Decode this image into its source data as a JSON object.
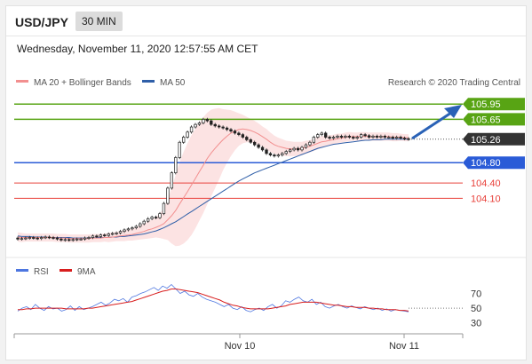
{
  "header": {
    "pair": "USD/JPY",
    "timeframe": "30 MIN"
  },
  "timestamp": "Wednesday, November 11, 2020 12:57:55 AM CET",
  "colors": {
    "support": "#2a5bd7",
    "resistance": "#58a414",
    "pivot": "#e8403a",
    "price_tag": "#333333",
    "ma20": "#f28f8f",
    "ma50": "#2f5fa8",
    "bollinger": "#fbdada",
    "rsi": "#4d76e0",
    "rsi_ma": "#d81e1e",
    "arrow": "#2a62b6"
  },
  "chart_data": [
    {
      "type": "candlestick",
      "title": "USD/JPY 30 MIN",
      "legend": [
        {
          "name": "MA 20 + Bollinger Bands",
          "color": "#f28f8f"
        },
        {
          "name": "MA 50",
          "color": "#2f5fa8"
        }
      ],
      "credit": "Research © 2020 Trading Central",
      "x_ticks": [
        "Nov 10",
        "Nov 11"
      ],
      "ylim": [
        103.2,
        106.25
      ],
      "y_scale": "linear",
      "grid": false,
      "current_price": "105.26",
      "levels": [
        {
          "label": "105.95",
          "value": 105.95,
          "kind": "resistance"
        },
        {
          "label": "105.65",
          "value": 105.65,
          "kind": "resistance"
        },
        {
          "label": "104.80",
          "value": 104.8,
          "kind": "support"
        },
        {
          "label": "104.40",
          "value": 104.4,
          "kind": "pivot"
        },
        {
          "label": "104.10",
          "value": 104.1,
          "kind": "pivot"
        }
      ],
      "close": [
        103.3,
        103.31,
        103.32,
        103.33,
        103.32,
        103.31,
        103.33,
        103.34,
        103.33,
        103.32,
        103.3,
        103.28,
        103.29,
        103.28,
        103.29,
        103.3,
        103.3,
        103.32,
        103.33,
        103.36,
        103.35,
        103.38,
        103.37,
        103.4,
        103.41,
        103.42,
        103.45,
        103.48,
        103.5,
        103.52,
        103.55,
        103.6,
        103.65,
        103.7,
        103.73,
        103.72,
        103.8,
        104.0,
        104.3,
        104.6,
        104.9,
        105.2,
        105.3,
        105.4,
        105.5,
        105.55,
        105.58,
        105.65,
        105.62,
        105.55,
        105.52,
        105.5,
        105.48,
        105.45,
        105.42,
        105.38,
        105.35,
        105.3,
        105.25,
        105.2,
        105.15,
        105.1,
        105.05,
        104.98,
        104.95,
        104.93,
        104.95,
        104.98,
        105.02,
        105.05,
        105.08,
        105.05,
        105.1,
        105.15,
        105.2,
        105.3,
        105.35,
        105.38,
        105.3,
        105.28,
        105.3,
        105.32,
        105.3,
        105.32,
        105.3,
        105.28,
        105.3,
        105.35,
        105.33,
        105.3,
        105.32,
        105.3,
        105.32,
        105.3,
        105.3,
        105.28,
        105.3,
        105.28,
        105.27,
        105.26
      ],
      "ma20": [
        103.34,
        103.33,
        103.33,
        103.33,
        103.33,
        103.33,
        103.33,
        103.33,
        103.33,
        103.33,
        103.32,
        103.32,
        103.32,
        103.31,
        103.31,
        103.31,
        103.31,
        103.31,
        103.31,
        103.32,
        103.32,
        103.32,
        103.33,
        103.33,
        103.34,
        103.35,
        103.36,
        103.37,
        103.38,
        103.39,
        103.41,
        103.43,
        103.45,
        103.48,
        103.5,
        103.53,
        103.56,
        103.6,
        103.68,
        103.76,
        103.86,
        103.99,
        104.11,
        104.23,
        104.36,
        104.49,
        104.62,
        104.75,
        104.88,
        104.99,
        105.08,
        105.17,
        105.25,
        105.32,
        105.38,
        105.42,
        105.45,
        105.46,
        105.45,
        105.43,
        105.4,
        105.36,
        105.31,
        105.26,
        105.2,
        105.15,
        105.12,
        105.1,
        105.08,
        105.07,
        105.07,
        105.07,
        105.08,
        105.1,
        105.12,
        105.15,
        105.18,
        105.21,
        105.22,
        105.24,
        105.25,
        105.27,
        105.28,
        105.3,
        105.31,
        105.31,
        105.31,
        105.32,
        105.32,
        105.31,
        105.31,
        105.31,
        105.31,
        105.31,
        105.31,
        105.3,
        105.3,
        105.3,
        105.29,
        105.29
      ],
      "ma50": [
        103.36,
        103.35,
        103.35,
        103.35,
        103.34,
        103.34,
        103.34,
        103.34,
        103.33,
        103.33,
        103.33,
        103.33,
        103.33,
        103.33,
        103.32,
        103.32,
        103.32,
        103.32,
        103.32,
        103.32,
        103.33,
        103.33,
        103.33,
        103.33,
        103.34,
        103.34,
        103.35,
        103.35,
        103.36,
        103.37,
        103.38,
        103.39,
        103.4,
        103.42,
        103.44,
        103.46,
        103.49,
        103.52,
        103.56,
        103.6,
        103.64,
        103.69,
        103.74,
        103.79,
        103.84,
        103.89,
        103.94,
        103.99,
        104.04,
        104.09,
        104.14,
        104.19,
        104.24,
        104.29,
        104.34,
        104.39,
        104.44,
        104.48,
        104.52,
        104.56,
        104.6,
        104.63,
        104.66,
        104.69,
        104.72,
        104.75,
        104.78,
        104.81,
        104.84,
        104.87,
        104.9,
        104.93,
        104.96,
        104.99,
        105.02,
        105.05,
        105.08,
        105.1,
        105.12,
        105.14,
        105.16,
        105.17,
        105.18,
        105.19,
        105.2,
        105.21,
        105.22,
        105.23,
        105.24,
        105.24,
        105.25,
        105.25,
        105.25,
        105.26,
        105.26,
        105.26,
        105.26,
        105.26,
        105.26,
        105.26
      ],
      "bb_width": [
        0.09,
        0.09,
        0.08,
        0.08,
        0.08,
        0.08,
        0.08,
        0.08,
        0.08,
        0.08,
        0.08,
        0.08,
        0.08,
        0.08,
        0.08,
        0.08,
        0.08,
        0.08,
        0.08,
        0.08,
        0.08,
        0.08,
        0.08,
        0.09,
        0.09,
        0.09,
        0.1,
        0.11,
        0.11,
        0.12,
        0.13,
        0.14,
        0.15,
        0.17,
        0.18,
        0.2,
        0.24,
        0.3,
        0.4,
        0.55,
        0.7,
        0.82,
        0.9,
        0.95,
        0.98,
        0.98,
        0.96,
        0.94,
        0.9,
        0.85,
        0.78,
        0.7,
        0.6,
        0.52,
        0.45,
        0.38,
        0.32,
        0.28,
        0.25,
        0.23,
        0.22,
        0.21,
        0.2,
        0.2,
        0.19,
        0.18,
        0.17,
        0.16,
        0.15,
        0.15,
        0.14,
        0.14,
        0.13,
        0.13,
        0.12,
        0.12,
        0.12,
        0.11,
        0.11,
        0.1,
        0.1,
        0.1,
        0.09,
        0.09,
        0.09,
        0.08,
        0.08,
        0.08,
        0.08,
        0.08,
        0.08,
        0.08,
        0.08,
        0.08,
        0.08,
        0.08,
        0.08,
        0.07,
        0.07,
        0.07
      ]
    },
    {
      "type": "line",
      "legend": [
        {
          "name": "RSI",
          "color": "#4d76e0"
        },
        {
          "name": "9MA",
          "color": "#d81e1e"
        }
      ],
      "y_ticks": [
        "70",
        "50",
        "30"
      ],
      "ylim": [
        20,
        85
      ],
      "rsi": [
        46,
        50,
        52,
        48,
        55,
        50,
        47,
        52,
        49,
        50,
        46,
        48,
        53,
        47,
        52,
        48,
        50,
        52,
        55,
        58,
        54,
        57,
        62,
        60,
        63,
        58,
        65,
        67,
        70,
        72,
        75,
        78,
        74,
        80,
        77,
        82,
        76,
        70,
        73,
        68,
        66,
        70,
        65,
        62,
        60,
        58,
        55,
        52,
        55,
        50,
        48,
        52,
        47,
        45,
        48,
        50,
        47,
        52,
        55,
        50,
        53,
        60,
        58,
        62,
        65,
        60,
        58,
        62,
        55,
        58,
        52,
        50,
        53,
        55,
        52,
        50,
        53,
        51,
        49,
        52,
        50,
        48,
        50,
        47,
        49,
        46,
        48,
        47,
        46,
        45
      ],
      "rsi_ma": [
        48,
        48,
        49,
        49,
        50,
        50,
        50,
        50,
        50,
        50,
        50,
        49,
        49,
        49,
        49,
        49,
        50,
        50,
        51,
        52,
        53,
        54,
        55,
        56,
        57,
        58,
        59,
        61,
        63,
        65,
        67,
        69,
        71,
        73,
        74,
        76,
        76,
        75,
        74,
        73,
        72,
        71,
        69,
        67,
        65,
        63,
        61,
        58,
        56,
        54,
        53,
        51,
        50,
        49,
        49,
        49,
        49,
        49,
        50,
        51,
        52,
        53,
        55,
        56,
        57,
        58,
        58,
        58,
        58,
        57,
        56,
        55,
        54,
        54,
        53,
        52,
        52,
        51,
        51,
        51,
        50,
        50,
        49,
        49,
        48,
        48,
        48,
        47,
        47,
        46
      ]
    }
  ]
}
